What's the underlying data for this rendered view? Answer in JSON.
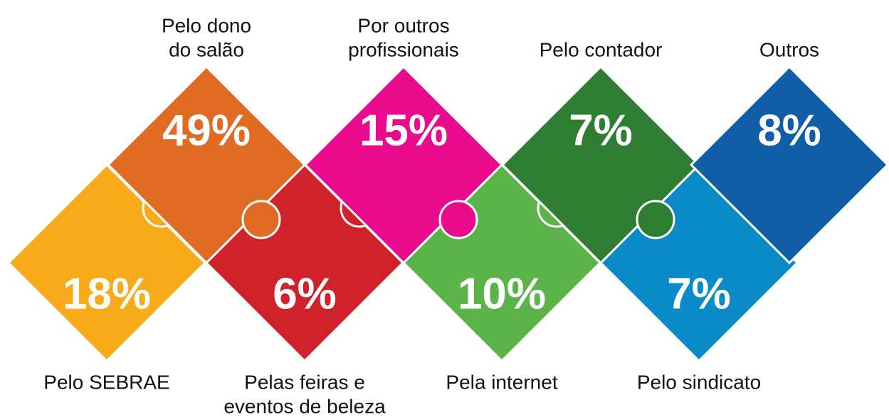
{
  "pieces": [
    {
      "label": [
        "Pelo dono",
        "do salão"
      ],
      "value": "49%",
      "color": "#e06c24"
    },
    {
      "label": [
        "Por outros",
        "profissionais"
      ],
      "value": "15%",
      "color": "#ea0a8c"
    },
    {
      "label": [
        "Pelo contador"
      ],
      "value": "7%",
      "color": "#2e7d32"
    },
    {
      "label": [
        "Outros"
      ],
      "value": "8%",
      "color": "#0f5ea6"
    },
    {
      "label": [
        "Pelo SEBRAE"
      ],
      "value": "18%",
      "color": "#f7ab1b"
    },
    {
      "label": [
        "Pelas feiras e",
        "eventos de beleza"
      ],
      "value": "6%",
      "color": "#d0222b"
    },
    {
      "label": [
        "Pela internet"
      ],
      "value": "10%",
      "color": "#5cb34a"
    },
    {
      "label": [
        "Pelo sindicato"
      ],
      "value": "7%",
      "color": "#0a8bc8"
    }
  ]
}
